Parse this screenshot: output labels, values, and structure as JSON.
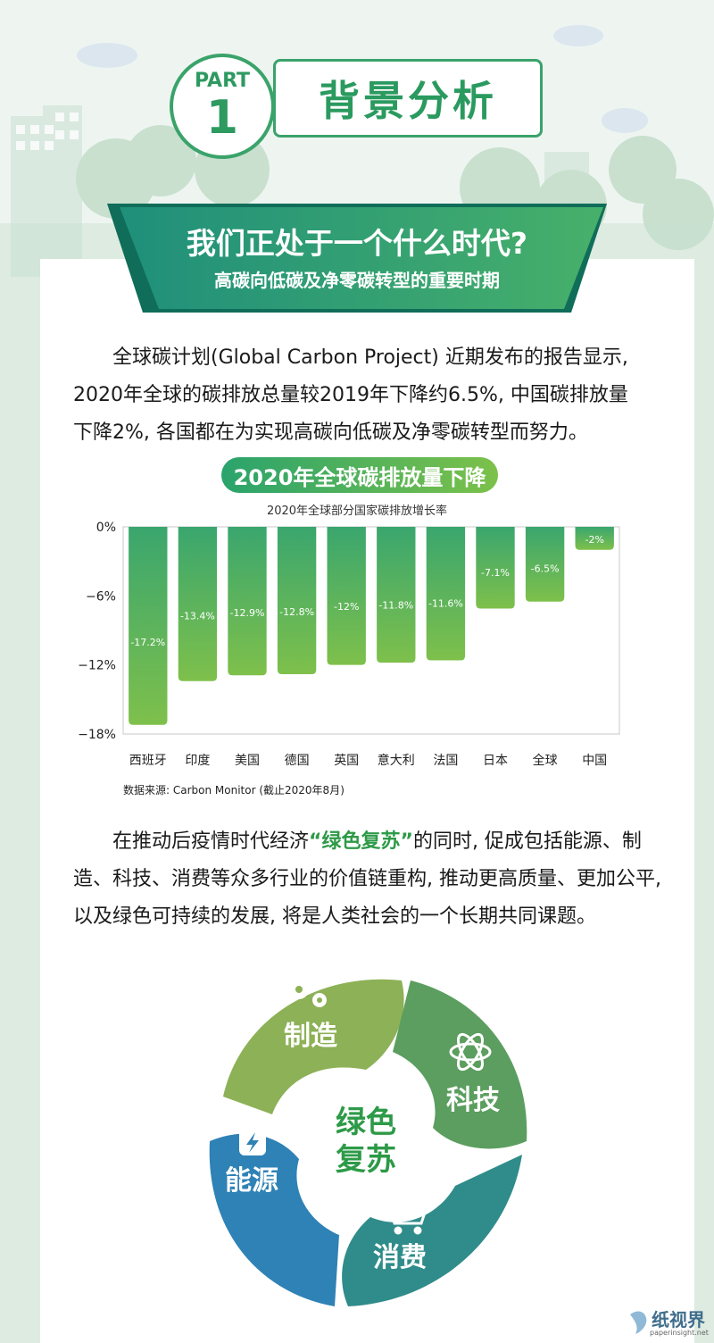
{
  "header": {
    "part_label": "PART",
    "part_number": "1",
    "title": "背景分析"
  },
  "banner": {
    "question": "我们正处于一个什么时代?",
    "subtitle": "高碳向低碳及净零碳转型的重要时期"
  },
  "intro": {
    "lines": [
      "全球碳计划(Global Carbon Project) 近期发布的报告显示,",
      "2020年全球的碳排放总量较2019年下降约6.5%, 中国碳排放量",
      "下降2%, 各国都在为实现高碳向低碳及净零碳转型而努力。"
    ]
  },
  "chart_heading": "2020年全球碳排放量下降",
  "chart_data": {
    "type": "bar",
    "title": "2020年全球部分国家碳排放增长率",
    "categories": [
      "西班牙",
      "印度",
      "美国",
      "德国",
      "英国",
      "意大利",
      "法国",
      "日本",
      "全球",
      "中国"
    ],
    "values": [
      -17.2,
      -13.4,
      -12.9,
      -12.8,
      -12,
      -11.8,
      -11.6,
      -7.1,
      -6.5,
      -2
    ],
    "value_labels": [
      "-17.2%",
      "-13.4%",
      "-12.9%",
      "-12.8%",
      "-12%",
      "-11.8%",
      "-11.6%",
      "-7.1%",
      "-6.5%",
      "-2%"
    ],
    "y_ticks": [
      0,
      -6,
      -12,
      -18
    ],
    "y_tick_labels": [
      "0%",
      "−6%",
      "−12%",
      "−18%"
    ],
    "ylim": [
      -18,
      0
    ],
    "bar_color_top": "#3aa66e",
    "bar_color_bottom": "#7ec04b",
    "grid": false
  },
  "source_note": "数据来源: Carbon Monitor (截止2020年8月)",
  "recovery": {
    "before": "在推动后疫情时代经济",
    "highlight": "“绿色复苏”",
    "after_line1": "的同时, 促成包括能源、制",
    "line2": "造、科技、消费等众多行业的价值链重构, 推动更高质量、更加公平,",
    "line3": "以及绿色可持续的发展, 将是人类社会的一个长期共同课题。"
  },
  "cycle": {
    "center_line1": "绿色",
    "center_line2": "复苏",
    "segments": [
      {
        "label": "制造",
        "icon": "gears-icon",
        "color": "#8db156"
      },
      {
        "label": "科技",
        "icon": "atom-icon",
        "color": "#5b9e5f"
      },
      {
        "label": "消费",
        "icon": "shopping-cart-icon",
        "color": "#2f8c8a"
      },
      {
        "label": "能源",
        "icon": "lightning-icon",
        "color": "#2f82b5"
      }
    ]
  },
  "watermark": {
    "name": "纸视界",
    "url": "paperinsight.net"
  }
}
